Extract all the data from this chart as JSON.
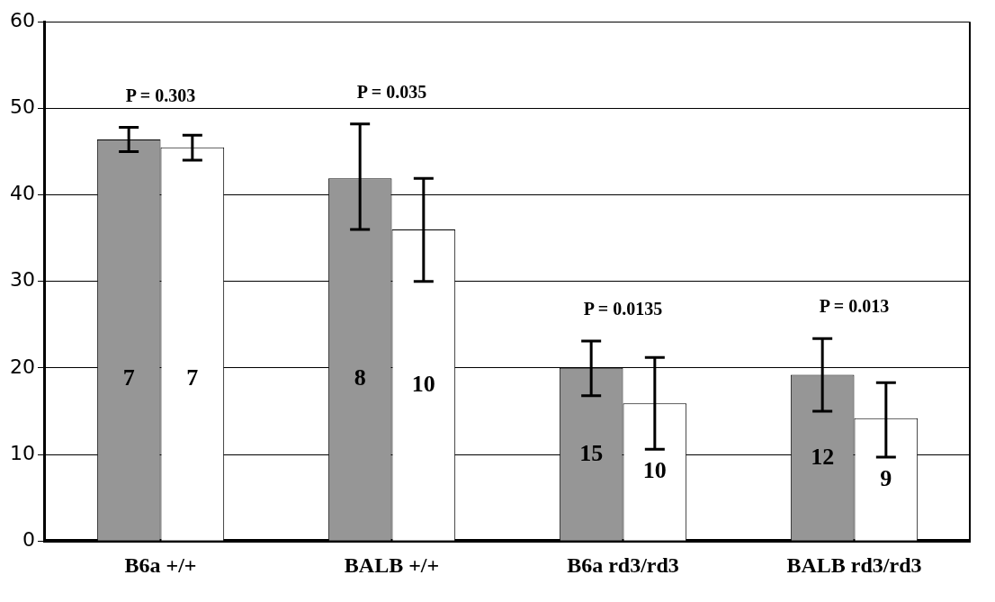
{
  "chart_data": {
    "type": "bar",
    "categories": [
      "B6a +/+",
      "BALB +/+",
      "B6a rd3/rd3",
      "BALB rd3/rd3"
    ],
    "series": [
      {
        "color": "#969696",
        "values": [
          46.4,
          41.9,
          20.0,
          19.2
        ],
        "errors": [
          [
            45,
            47.8
          ],
          [
            36,
            48.2
          ],
          [
            16.8,
            23.1
          ],
          [
            15,
            23.4
          ]
        ]
      },
      {
        "color": "#ffffff",
        "values": [
          45.5,
          36,
          15.9,
          14.2
        ],
        "errors": [
          [
            44,
            46.9
          ],
          [
            30,
            41.9
          ],
          [
            10.6,
            21.2
          ],
          [
            9.7,
            18.3
          ]
        ]
      }
    ],
    "ylim": [
      0,
      60
    ],
    "yticks": [
      0,
      10,
      20,
      30,
      40,
      50,
      60
    ],
    "grid": "y",
    "legend": false,
    "annotations": [
      "P = 0.303",
      "P = 0.035",
      "P = 0.0135",
      "P = 0.013",
      "7",
      "7",
      "8",
      "10",
      "15",
      "10",
      "12",
      "9"
    ]
  }
}
